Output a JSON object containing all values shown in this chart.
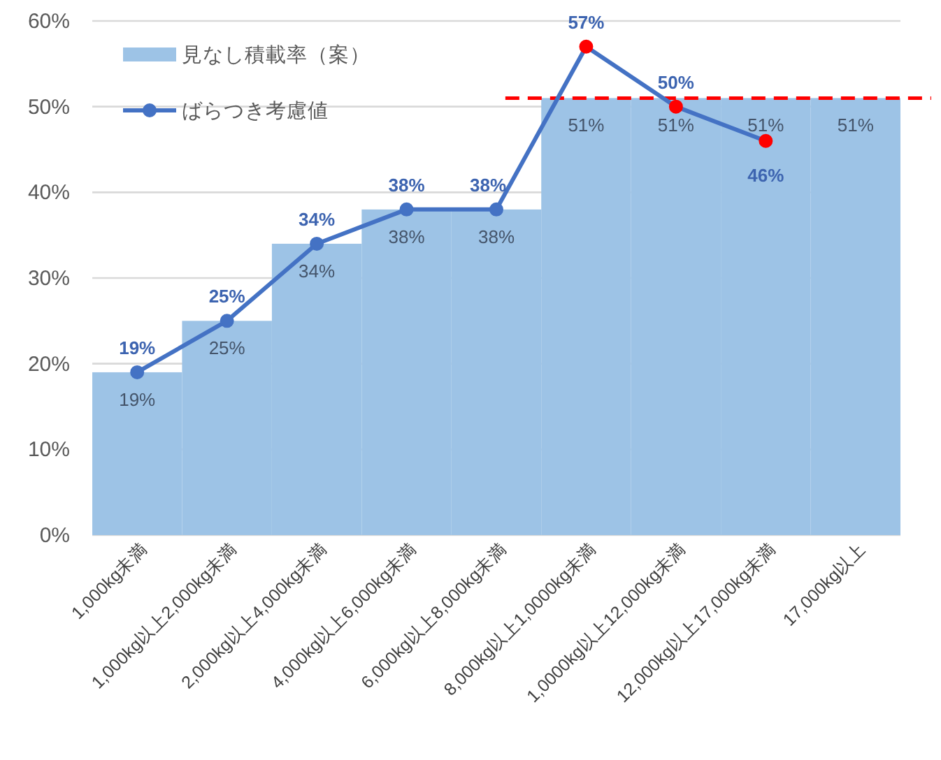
{
  "chart_data": {
    "type": "bar",
    "categories": [
      "1,000kg未満",
      "1,000kg以上2,000kg未満",
      "2,000kg以上4,000kg未満",
      "4,000kg以上6,000kg未満",
      "6,000kg以上8,000kg未満",
      "8,000kg以上1,0000kg未満",
      "1,0000kg以上12,000kg未満",
      "12,000kg以上17,000kg未満",
      "17,000kg以上"
    ],
    "series": [
      {
        "name": "見なし積載率（案）",
        "type": "bar",
        "color": "#9dc3e6",
        "values": [
          19,
          25,
          34,
          38,
          38,
          51,
          51,
          51,
          51
        ],
        "value_labels": [
          "19%",
          "25%",
          "34%",
          "38%",
          "38%",
          "51%",
          "51%",
          "51%",
          "51%"
        ]
      },
      {
        "name": "ばらつき考慮値",
        "type": "line",
        "color": "#4472c4",
        "colors": [
          "#4472c4",
          "#4472c4",
          "#4472c4",
          "#4472c4",
          "#4472c4",
          "#ff0000",
          "#ff0000",
          "#ff0000",
          null
        ],
        "values": [
          19,
          25,
          34,
          38,
          38,
          57,
          50,
          46,
          null
        ],
        "value_labels": [
          "19%",
          "25%",
          "34%",
          "38%",
          "38%",
          "57%",
          "50%",
          "46%",
          null
        ]
      }
    ],
    "ylim": [
      0,
      60
    ],
    "yticks": [
      {
        "value": 0,
        "label": "0%"
      },
      {
        "value": 10,
        "label": "10%"
      },
      {
        "value": 20,
        "label": "20%"
      },
      {
        "value": 30,
        "label": "30%"
      },
      {
        "value": 40,
        "label": "40%"
      },
      {
        "value": 50,
        "label": "50%"
      },
      {
        "value": 60,
        "label": "60%"
      }
    ],
    "ref_lines": [
      {
        "axis": "y",
        "value": 51,
        "color": "#ff0000",
        "line_style": "dashed"
      }
    ],
    "grid": "y",
    "legend": "top left",
    "marker": "circle"
  }
}
